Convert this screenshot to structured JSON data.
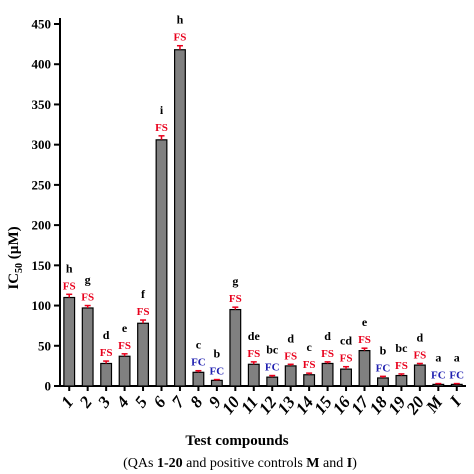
{
  "chart_data": {
    "type": "bar",
    "ylabel": "IC50 (µM)",
    "ylabel_main": "IC",
    "ylabel_sub": "50",
    "ylabel_unit": " (µM)",
    "xlabel": "Test compounds",
    "subtitle": {
      "open": "(QAs ",
      "bold1": "1-20",
      "middle": " and positive controls ",
      "bold2": "M",
      "and": " and ",
      "bold3": "I",
      "close": ")"
    },
    "ylim": [
      0,
      450
    ],
    "yticks": [
      0,
      50,
      100,
      150,
      200,
      250,
      300,
      350,
      400,
      450
    ],
    "grid": false,
    "legend": "none",
    "categories": [
      "1",
      "2",
      "3",
      "4",
      "5",
      "6",
      "7",
      "8",
      "9",
      "10",
      "11",
      "12",
      "13",
      "14",
      "15",
      "16",
      "17",
      "18",
      "19",
      "20",
      "M",
      "I"
    ],
    "values": [
      110,
      97,
      28,
      37,
      78,
      306,
      418,
      17,
      7,
      95,
      27,
      11,
      25,
      14,
      28,
      21,
      44,
      10,
      13,
      26,
      2,
      2
    ],
    "errors": [
      4,
      3,
      3,
      3,
      4,
      5,
      5,
      2,
      1,
      3,
      3,
      2,
      2,
      2,
      2,
      3,
      3,
      2,
      2,
      2,
      1,
      1
    ],
    "letters": [
      "h",
      "g",
      "d",
      "e",
      "f",
      "i",
      "h",
      "c",
      "b",
      "g",
      "de",
      "bc",
      "d",
      "c",
      "d",
      "cd",
      "e",
      "b",
      "bc",
      "d",
      "a",
      "a"
    ],
    "annotations": [
      "FS",
      "FS",
      "FS",
      "FS",
      "FS",
      "FS",
      "FS",
      "FC",
      "FC",
      "FS",
      "FS",
      "FC",
      "FS",
      "FS",
      "FS",
      "FS",
      "FS",
      "FC",
      "FS",
      "FS",
      "FC",
      "FC"
    ],
    "colors": {
      "bar": "#808080",
      "error": "#e8001c",
      "FS": "#e8001c",
      "FC": "#1f1fb0",
      "axis": "#000000"
    }
  }
}
